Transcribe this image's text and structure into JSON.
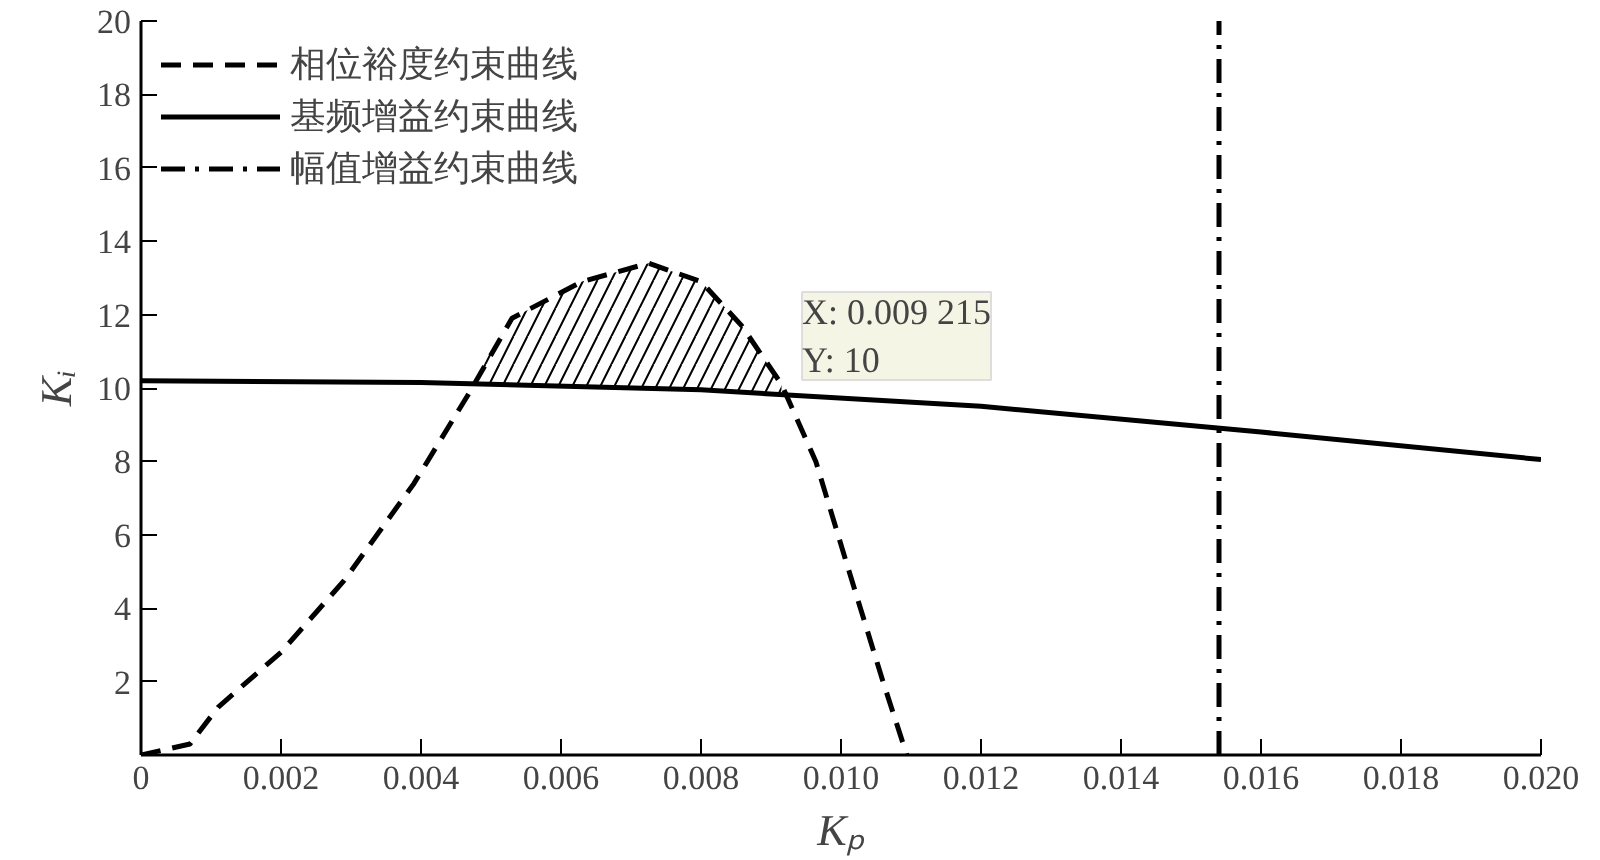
{
  "chart_data": {
    "type": "line",
    "xlabel": "Kₚ",
    "ylabel": "Kᵢ",
    "xlim": [
      0,
      0.02
    ],
    "ylim": [
      0,
      20
    ],
    "xticks": [
      {
        "value": 0,
        "label": "0"
      },
      {
        "value": 0.002,
        "label": "0.002"
      },
      {
        "value": 0.004,
        "label": "0.004"
      },
      {
        "value": 0.006,
        "label": "0.006"
      },
      {
        "value": 0.008,
        "label": "0.008"
      },
      {
        "value": 0.01,
        "label": "0.010"
      },
      {
        "value": 0.012,
        "label": "0.012"
      },
      {
        "value": 0.014,
        "label": "0.014"
      },
      {
        "value": 0.016,
        "label": "0.016"
      },
      {
        "value": 0.018,
        "label": "0.018"
      },
      {
        "value": 0.02,
        "label": "0.020"
      }
    ],
    "yticks": [
      {
        "value": 0,
        "label": null
      },
      2,
      4,
      6,
      8,
      10,
      12,
      14,
      16,
      18,
      20
    ],
    "series": [
      {
        "name": "相位裕度约束曲线",
        "color": "#000000",
        "line_style": "dashed",
        "x": [
          0,
          0.0007,
          0.0011,
          0.002,
          0.0029,
          0.0039,
          0.0047,
          0.0053,
          0.0063,
          0.00725,
          0.008,
          0.00858,
          0.00915,
          0.00964,
          0.0101,
          0.0106,
          0.01094
        ],
        "values": [
          0,
          0.3,
          1.3,
          2.8,
          4.75,
          7.4,
          9.9,
          11.9,
          12.9,
          13.4,
          12.9,
          11.7,
          10.1,
          8.0,
          5.1,
          2.0,
          0
        ],
        "lower": [
          null,
          null,
          null,
          null,
          null,
          null,
          10.1,
          10.08,
          10.04,
          10.0,
          9.95,
          9.9,
          9.8,
          null,
          null,
          null,
          null
        ],
        "upper": [
          null,
          null,
          null,
          null,
          null,
          null,
          10.1,
          11.9,
          12.9,
          13.4,
          12.9,
          11.7,
          10.1,
          null,
          null,
          null,
          null
        ]
      },
      {
        "name": "基频增益约束曲线",
        "color": "#000000",
        "line_style": "solid",
        "x": [
          0,
          0.004,
          0.008,
          0.012,
          0.016,
          0.02
        ],
        "values": [
          10.2,
          10.15,
          9.95,
          9.5,
          8.8,
          8.05
        ]
      },
      {
        "name": "幅值增益约束曲线",
        "color": "#000000",
        "line_style": "dashdot",
        "x": [
          0.0154,
          0.0154
        ],
        "values": [
          0,
          20
        ]
      }
    ],
    "annotations": [
      {
        "text": "X: 0.009 215\nY: 10",
        "x": 0.009215,
        "y": 10
      }
    ],
    "legend": "top left",
    "grid": false
  }
}
